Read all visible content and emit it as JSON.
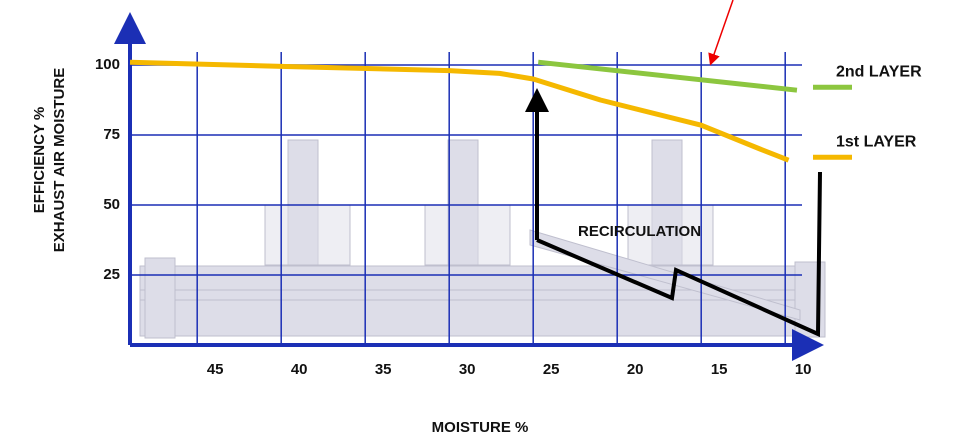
{
  "chart_data": {
    "type": "line",
    "x_label": "MOISTURE %",
    "y_label_lines": [
      "EFFICIENCY %",
      "EXHAUST AIR MOISTURE"
    ],
    "annotation": "RECIRCULATION",
    "xlim": [
      49,
      9
    ],
    "xticks": [
      45,
      40,
      35,
      30,
      25,
      20,
      15,
      10
    ],
    "ylim": [
      0,
      110
    ],
    "yticks": [
      25,
      50,
      75,
      100
    ],
    "grid": true,
    "series": [
      {
        "name": "2nd LAYER",
        "color": "#8cc63f",
        "x": [
          24.7,
          9.3
        ],
        "values": [
          101,
          91
        ]
      },
      {
        "name": "1st LAYER",
        "color": "#f5b800",
        "x": [
          49,
          40,
          30,
          27,
          25,
          21,
          15,
          11.5,
          9.8
        ],
        "values": [
          101,
          99.5,
          98,
          97,
          95,
          87.5,
          78.5,
          70,
          66
        ]
      }
    ]
  }
}
